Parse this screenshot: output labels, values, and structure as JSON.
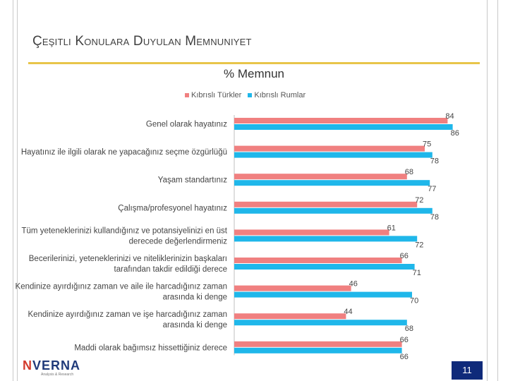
{
  "slide": {
    "title": "Çeşitli Konulara Duyulan Memnuniyet",
    "page_number": "11",
    "logo_text_accent": "N",
    "logo_text_rest": "VERNA",
    "logo_subtitle": "Analysis & Research"
  },
  "colors": {
    "kibrisli_turkler": "#f08080",
    "kibrisli_rumlar": "#1fb7ea",
    "title_rule": "#e8c54a",
    "page_badge": "#0f2a7a"
  },
  "chart_data": {
    "type": "bar",
    "orientation": "horizontal",
    "title": "% Memnun",
    "categories": [
      "Genel olarak hayatınız",
      "Hayatınız ile ilgili olarak ne yapacağınız seçme özgürlüğü",
      "Yaşam standartınız",
      "Çalışma/profesyonel hayatınız",
      "Tüm yeteneklerinizi kullandığınız ve potansiyelinizi en üst derecede değerlendirmeniz",
      "Becerilerinizi, yeteneklerinizi ve niteliklerinizin başkaları tarafından takdir edildiği derece",
      "Kendinize ayırdığınız zaman ve aile ile harcadığınız zaman arasında ki denge",
      "Kendinize ayırdığınız zaman ve işe harcadığınız zaman arasında ki denge",
      "Maddi olarak bağımsız hissettiğiniz derece"
    ],
    "category_lines": [
      [
        "Genel olarak hayatınız"
      ],
      [
        "Hayatınız ile ilgili olarak ne yapacağınız seçme özgürlüğü"
      ],
      [
        "Yaşam standartınız"
      ],
      [
        "Çalışma/profesyonel hayatınız"
      ],
      [
        "Tüm yeteneklerinizi kullandığınız ve potansiyelinizi en üst",
        "derecede değerlendirmeniz"
      ],
      [
        "Becerilerinizi, yeteneklerinizi ve niteliklerinizin başkaları",
        "tarafından takdir edildiği derece"
      ],
      [
        "Kendinize ayırdığınız zaman ve aile ile harcadığınız zaman",
        "arasında ki denge"
      ],
      [
        "Kendinize ayırdığınız zaman ve işe harcadığınız zaman",
        "arasında ki denge"
      ],
      [
        "Maddi olarak bağımsız hissettiğiniz derece"
      ]
    ],
    "series": [
      {
        "name": "Kıbrıslı Türkler",
        "color": "#f08080",
        "values": [
          84,
          75,
          68,
          72,
          61,
          66,
          46,
          44,
          66
        ]
      },
      {
        "name": "Kıbrıslı Rumlar",
        "color": "#1fb7ea",
        "values": [
          86,
          78,
          77,
          78,
          72,
          71,
          70,
          68,
          66
        ]
      }
    ],
    "xlim": [
      0,
      100
    ],
    "legend_position": "top",
    "grid": false,
    "data_labels": true
  }
}
